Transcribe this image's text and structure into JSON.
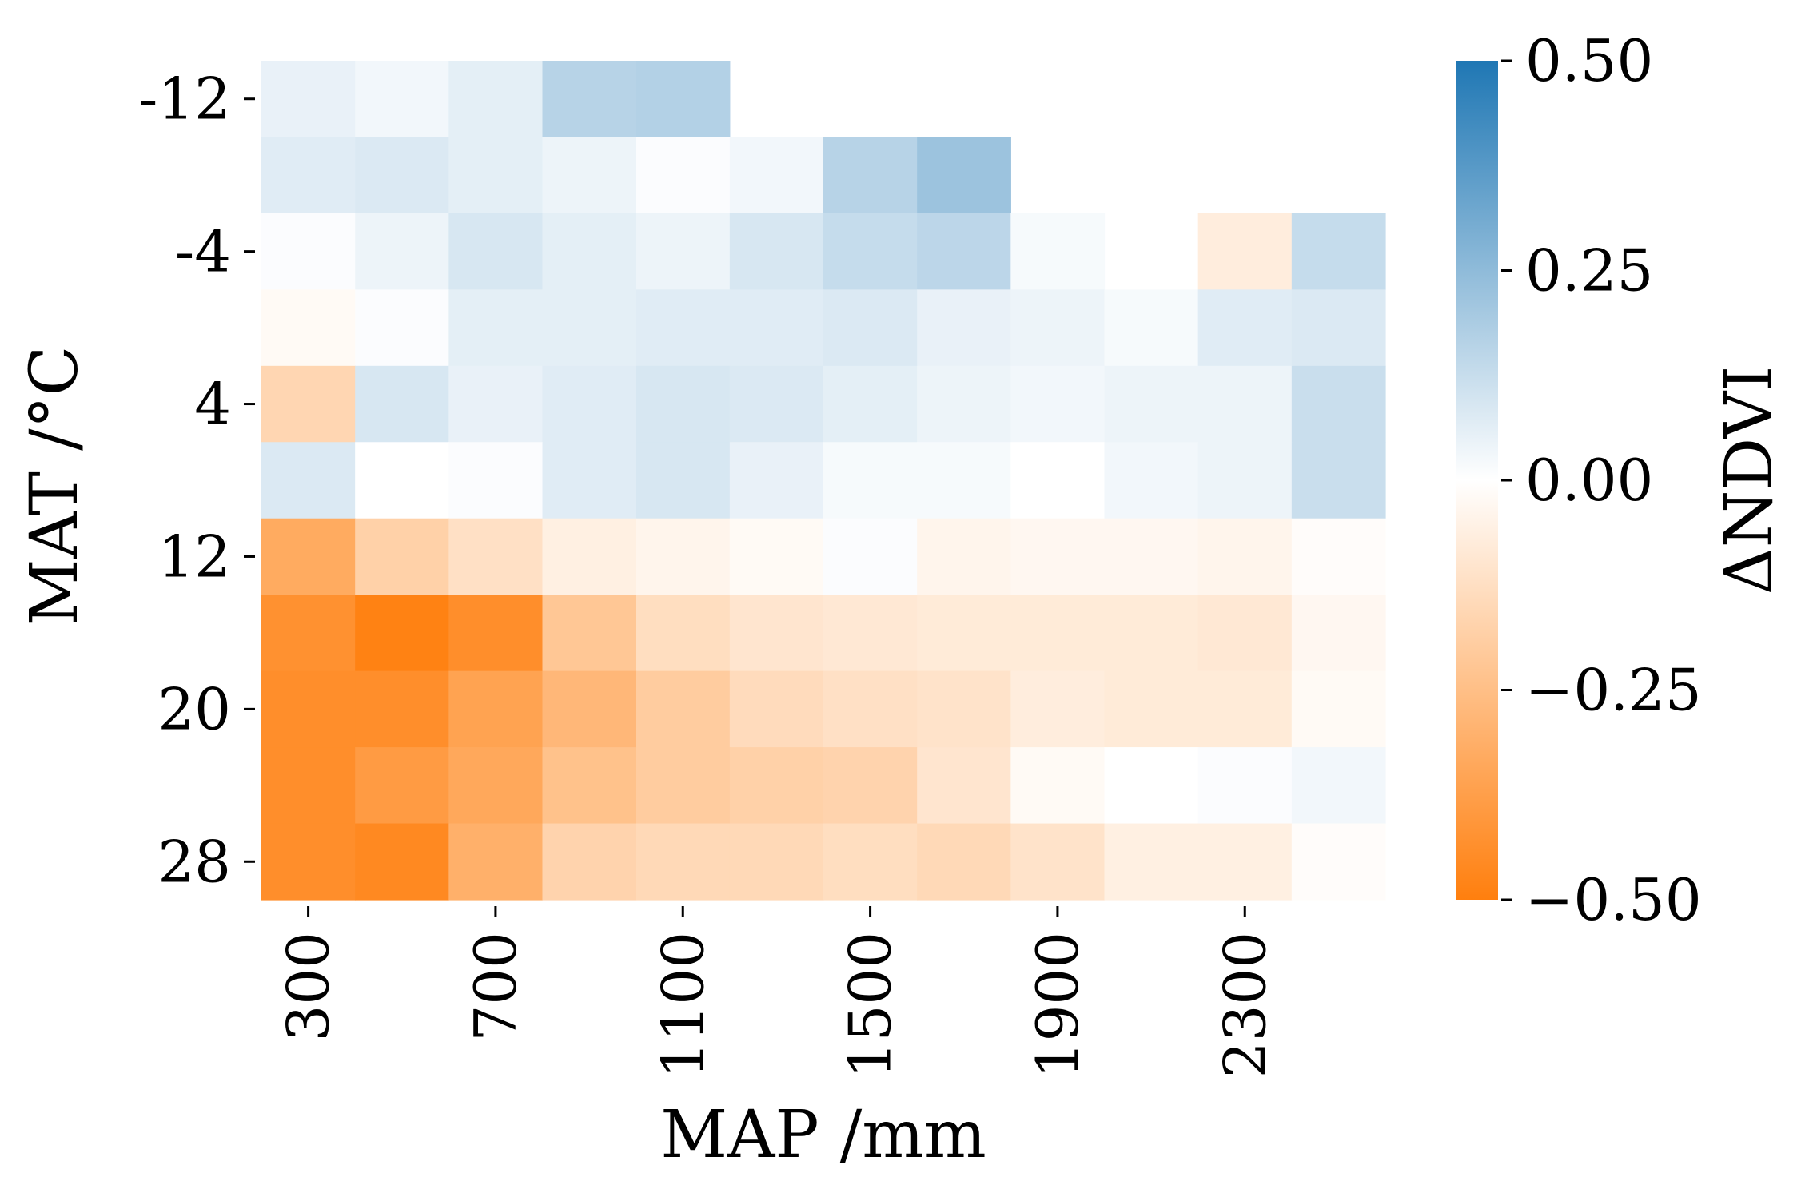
{
  "chart_data": {
    "type": "heatmap",
    "xlabel": "MAP /mm",
    "ylabel": "MAT /°C",
    "colorbar_label": "ΔNDVI",
    "x_tick_labels": [
      "300",
      "700",
      "1100",
      "1500",
      "1900",
      "2300"
    ],
    "x_tick_columns": [
      0,
      2,
      4,
      6,
      8,
      10
    ],
    "y_tick_labels": [
      "-12",
      "-4",
      "4",
      "12",
      "20",
      "28"
    ],
    "y_tick_rows": [
      0,
      2,
      4,
      6,
      8,
      10
    ],
    "n_cols": 12,
    "n_rows": 11,
    "values": [
      [
        0.05,
        0.03,
        0.06,
        0.16,
        0.17,
        null,
        null,
        null,
        null,
        null,
        null,
        null
      ],
      [
        0.07,
        0.08,
        0.06,
        0.04,
        0.01,
        0.03,
        0.16,
        0.22,
        null,
        null,
        null,
        null
      ],
      [
        0.01,
        0.04,
        0.09,
        0.06,
        0.04,
        0.09,
        0.13,
        0.15,
        0.02,
        null,
        -0.07,
        0.13
      ],
      [
        -0.02,
        0.01,
        0.06,
        0.06,
        0.07,
        0.07,
        0.08,
        0.05,
        0.04,
        0.02,
        0.07,
        0.08
      ],
      [
        -0.16,
        0.09,
        0.05,
        0.07,
        0.09,
        0.08,
        0.06,
        0.04,
        0.03,
        0.04,
        0.04,
        0.12
      ],
      [
        0.08,
        0.0,
        0.01,
        0.07,
        0.09,
        0.05,
        0.02,
        0.02,
        0.0,
        0.03,
        0.04,
        0.12
      ],
      [
        -0.33,
        -0.18,
        -0.12,
        -0.06,
        -0.04,
        -0.02,
        0.01,
        -0.04,
        -0.03,
        -0.03,
        -0.04,
        -0.01
      ],
      [
        -0.43,
        -0.49,
        -0.44,
        -0.22,
        -0.13,
        -0.1,
        -0.09,
        -0.08,
        -0.08,
        -0.08,
        -0.09,
        -0.03
      ],
      [
        -0.44,
        -0.44,
        -0.36,
        -0.28,
        -0.2,
        -0.14,
        -0.12,
        -0.11,
        -0.07,
        -0.08,
        -0.08,
        -0.02
      ],
      [
        -0.44,
        -0.39,
        -0.34,
        -0.24,
        -0.2,
        -0.18,
        -0.17,
        -0.1,
        -0.02,
        0.0,
        0.01,
        0.03
      ],
      [
        -0.44,
        -0.46,
        -0.31,
        -0.17,
        -0.15,
        -0.15,
        -0.13,
        -0.15,
        -0.11,
        -0.06,
        -0.06,
        -0.01
      ]
    ],
    "colorbar": {
      "vmin": -0.5,
      "vmax": 0.5,
      "tick_labels": [
        "0.50",
        "0.25",
        "0.00",
        "−0.25",
        "−0.50"
      ],
      "tick_values": [
        0.5,
        0.25,
        0.0,
        -0.25,
        -0.5
      ],
      "colors": {
        "low": "#ff7f0e",
        "mid": "#ffffff",
        "high": "#1f77b4"
      }
    }
  }
}
